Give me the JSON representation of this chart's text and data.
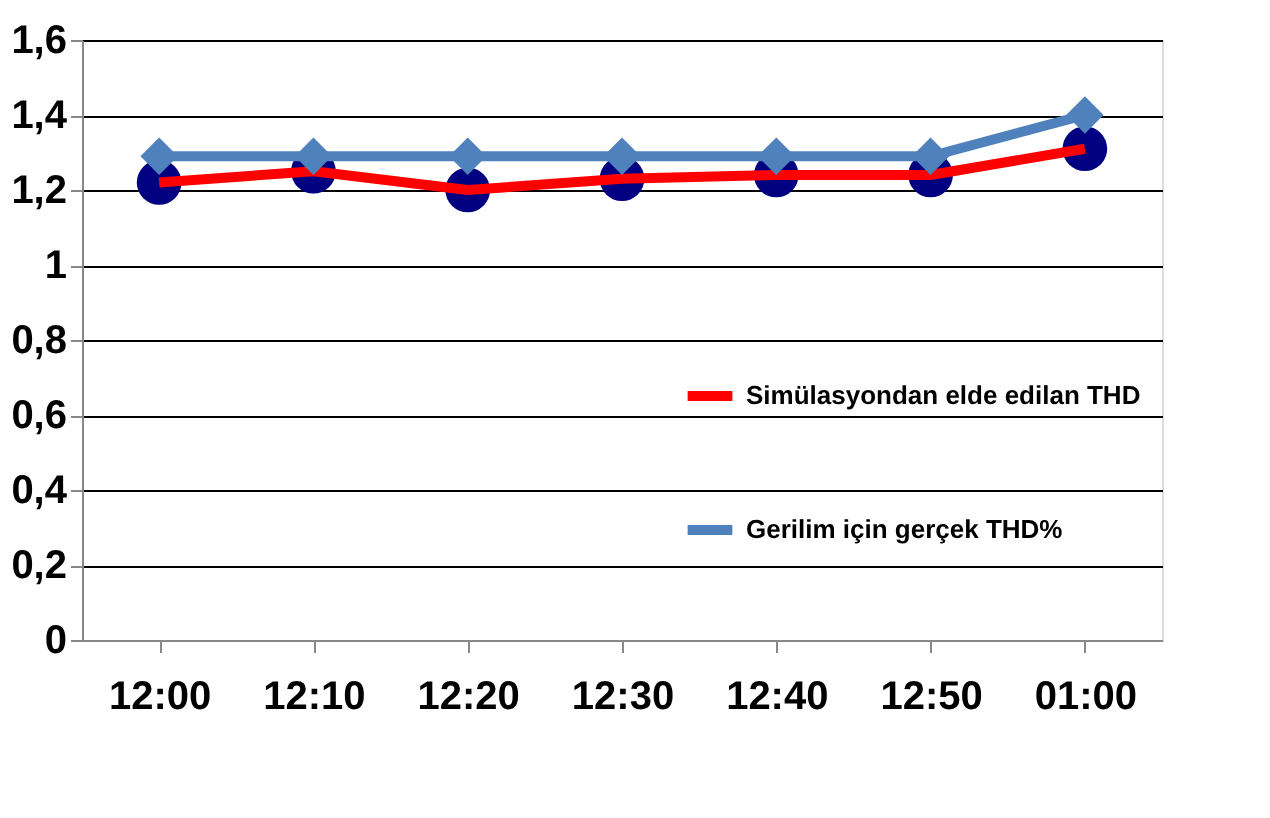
{
  "chart_data": {
    "type": "line",
    "categories": [
      "12:00",
      "12:10",
      "12:20",
      "12:30",
      "12:40",
      "12:50",
      "01:00"
    ],
    "series": [
      {
        "type": "scatter",
        "color": "#000080",
        "marker": "circle",
        "values": [
          1.22,
          1.25,
          1.2,
          1.23,
          1.24,
          1.24,
          1.31
        ]
      },
      {
        "name": "Simülasyondan elde edilan THD",
        "color": "#ff0000",
        "marker": "none",
        "values": [
          1.22,
          1.25,
          1.2,
          1.23,
          1.24,
          1.24,
          1.31
        ]
      },
      {
        "name": "Gerilim için gerçek THD%",
        "color": "#4f81bd",
        "marker": "diamond",
        "values": [
          1.29,
          1.29,
          1.29,
          1.29,
          1.29,
          1.29,
          1.4
        ]
      }
    ],
    "ylim": [
      0,
      1.6
    ],
    "yticks": [
      {
        "value": 0,
        "label": "0"
      },
      {
        "value": 0.2,
        "label": "0,2"
      },
      {
        "value": 0.4,
        "label": "0,4"
      },
      {
        "value": 0.6,
        "label": "0,6"
      },
      {
        "value": 0.8,
        "label": "0,8"
      },
      {
        "value": 1,
        "label": "1"
      },
      {
        "value": 1.2,
        "label": "1,2"
      },
      {
        "value": 1.4,
        "label": "1,4"
      },
      {
        "value": 1.6,
        "label": "1,6"
      }
    ],
    "grid": "y",
    "legend": "right",
    "line_style": "solid"
  }
}
